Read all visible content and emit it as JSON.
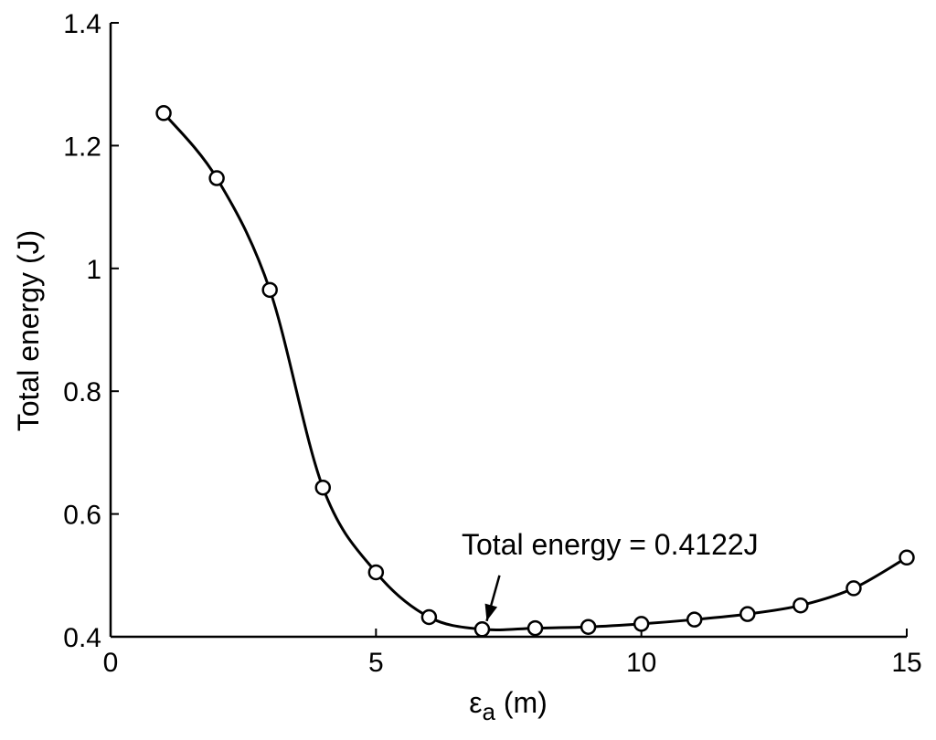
{
  "chart_data": {
    "type": "line",
    "xlabel": {
      "symbol": "ε",
      "subscript": "a",
      "unit": " (m)"
    },
    "ylabel": "Total energy (J)",
    "xlim": [
      0,
      15
    ],
    "ylim": [
      0.4,
      1.4
    ],
    "xticks": [
      0,
      5,
      10,
      15
    ],
    "yticks": [
      0.4,
      0.6,
      0.8,
      1.0,
      1.2,
      1.4
    ],
    "xtick_labels": [
      "0",
      "5",
      "10",
      "15"
    ],
    "ytick_labels": [
      "0.4",
      "0.6",
      "0.8",
      "1",
      "1.2",
      "1.4"
    ],
    "grid": false,
    "marker": "circle-open",
    "line_color": "#000000",
    "series": [
      {
        "x": [
          1,
          2,
          3,
          4,
          5,
          6,
          7,
          8,
          9,
          10,
          11,
          12,
          13,
          14,
          15
        ],
        "values": [
          1.253,
          1.147,
          0.965,
          0.643,
          0.505,
          0.432,
          0.4122,
          0.414,
          0.416,
          0.421,
          0.428,
          0.437,
          0.451,
          0.479,
          0.529
        ]
      }
    ],
    "annotations": [
      {
        "text": "Total energy = 0.4122J",
        "x": 7,
        "y": 0.4122,
        "arrow": true
      }
    ]
  }
}
